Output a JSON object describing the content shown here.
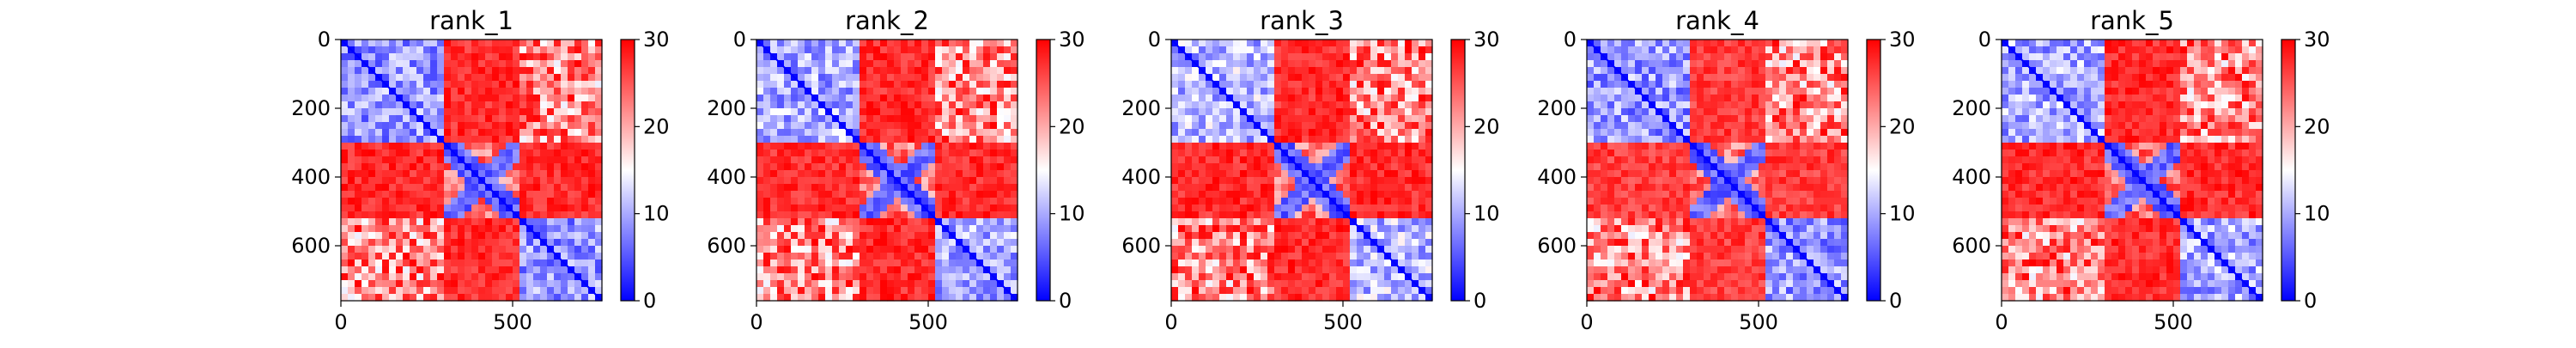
{
  "figure": {
    "layout": "1x5 grid of predicted aligned error heatmaps with colorbars"
  },
  "chart_data": [
    {
      "type": "heatmap",
      "title": "rank_1",
      "n_residues": 760,
      "xlim": [
        0,
        760
      ],
      "ylim": [
        760,
        0
      ],
      "xticks": [
        0,
        500
      ],
      "yticks": [
        0,
        200,
        400,
        600
      ],
      "colorbar": {
        "min": 0,
        "max": 30,
        "ticks": [
          0,
          10,
          20,
          30
        ],
        "colormap": "bwr"
      },
      "domains": [
        [
          0,
          300
        ],
        [
          300,
          530
        ],
        [
          530,
          760
        ]
      ],
      "values_summary": {
        "diagonal": 0.5,
        "intra_domain_mean": 8,
        "inter_domain_mean": 28
      }
    },
    {
      "type": "heatmap",
      "title": "rank_2",
      "n_residues": 760,
      "xlim": [
        0,
        760
      ],
      "ylim": [
        760,
        0
      ],
      "xticks": [
        0,
        500
      ],
      "yticks": [
        0,
        200,
        400,
        600
      ],
      "colorbar": {
        "min": 0,
        "max": 30,
        "ticks": [
          0,
          10,
          20,
          30
        ],
        "colormap": "bwr"
      },
      "domains": [
        [
          0,
          300
        ],
        [
          300,
          530
        ],
        [
          530,
          760
        ]
      ],
      "values_summary": {
        "diagonal": 0.5,
        "intra_domain_mean": 9,
        "inter_domain_mean": 28
      }
    },
    {
      "type": "heatmap",
      "title": "rank_3",
      "n_residues": 760,
      "xlim": [
        0,
        760
      ],
      "ylim": [
        760,
        0
      ],
      "xticks": [
        0,
        500
      ],
      "yticks": [
        0,
        200,
        400,
        600
      ],
      "colorbar": {
        "min": 0,
        "max": 30,
        "ticks": [
          0,
          10,
          20,
          30
        ],
        "colormap": "bwr"
      },
      "domains": [
        [
          0,
          300
        ],
        [
          300,
          530
        ],
        [
          530,
          760
        ]
      ],
      "values_summary": {
        "diagonal": 0.5,
        "intra_domain_mean": 10,
        "inter_domain_mean": 28
      }
    },
    {
      "type": "heatmap",
      "title": "rank_4",
      "n_residues": 760,
      "xlim": [
        0,
        760
      ],
      "ylim": [
        760,
        0
      ],
      "xticks": [
        0,
        500
      ],
      "yticks": [
        0,
        200,
        400,
        600
      ],
      "colorbar": {
        "min": 0,
        "max": 30,
        "ticks": [
          0,
          10,
          20,
          30
        ],
        "colormap": "bwr"
      },
      "domains": [
        [
          0,
          300
        ],
        [
          300,
          530
        ],
        [
          530,
          760
        ]
      ],
      "values_summary": {
        "diagonal": 0.5,
        "intra_domain_mean": 8,
        "inter_domain_mean": 27
      }
    },
    {
      "type": "heatmap",
      "title": "rank_5",
      "n_residues": 760,
      "xlim": [
        0,
        760
      ],
      "ylim": [
        760,
        0
      ],
      "xticks": [
        0,
        500
      ],
      "yticks": [
        0,
        200,
        400,
        600
      ],
      "colorbar": {
        "min": 0,
        "max": 30,
        "ticks": [
          0,
          10,
          20,
          30
        ],
        "colormap": "bwr"
      },
      "domains": [
        [
          0,
          300
        ],
        [
          300,
          530
        ],
        [
          530,
          760
        ]
      ],
      "values_summary": {
        "diagonal": 0.5,
        "intra_domain_mean": 9,
        "inter_domain_mean": 28
      }
    }
  ],
  "colors": {
    "low": "#0000ff",
    "mid": "#ffffff",
    "high": "#ff0000"
  }
}
